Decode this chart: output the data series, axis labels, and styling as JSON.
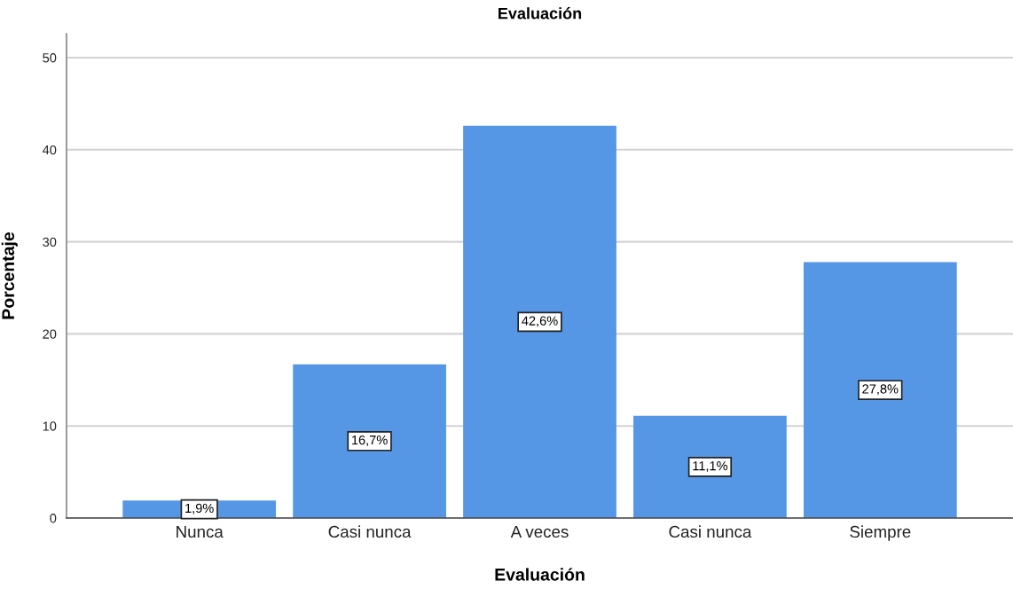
{
  "chart_data": {
    "type": "bar",
    "title": "Evaluación",
    "xlabel": "Evaluación",
    "ylabel": "Porcentaje",
    "categories": [
      "Nunca",
      "Casi nunca",
      "A veces",
      "Casi nunca",
      "Siempre"
    ],
    "values": [
      1.9,
      16.7,
      42.6,
      11.1,
      27.8
    ],
    "value_labels": [
      "1,9%",
      "16,7%",
      "42,6%",
      "11,1%",
      "27,8%"
    ],
    "color": "#5596e5",
    "ylim": [
      0,
      52.6
    ],
    "yticks": [
      0,
      10,
      20,
      30,
      40,
      50
    ],
    "grid": "y"
  }
}
